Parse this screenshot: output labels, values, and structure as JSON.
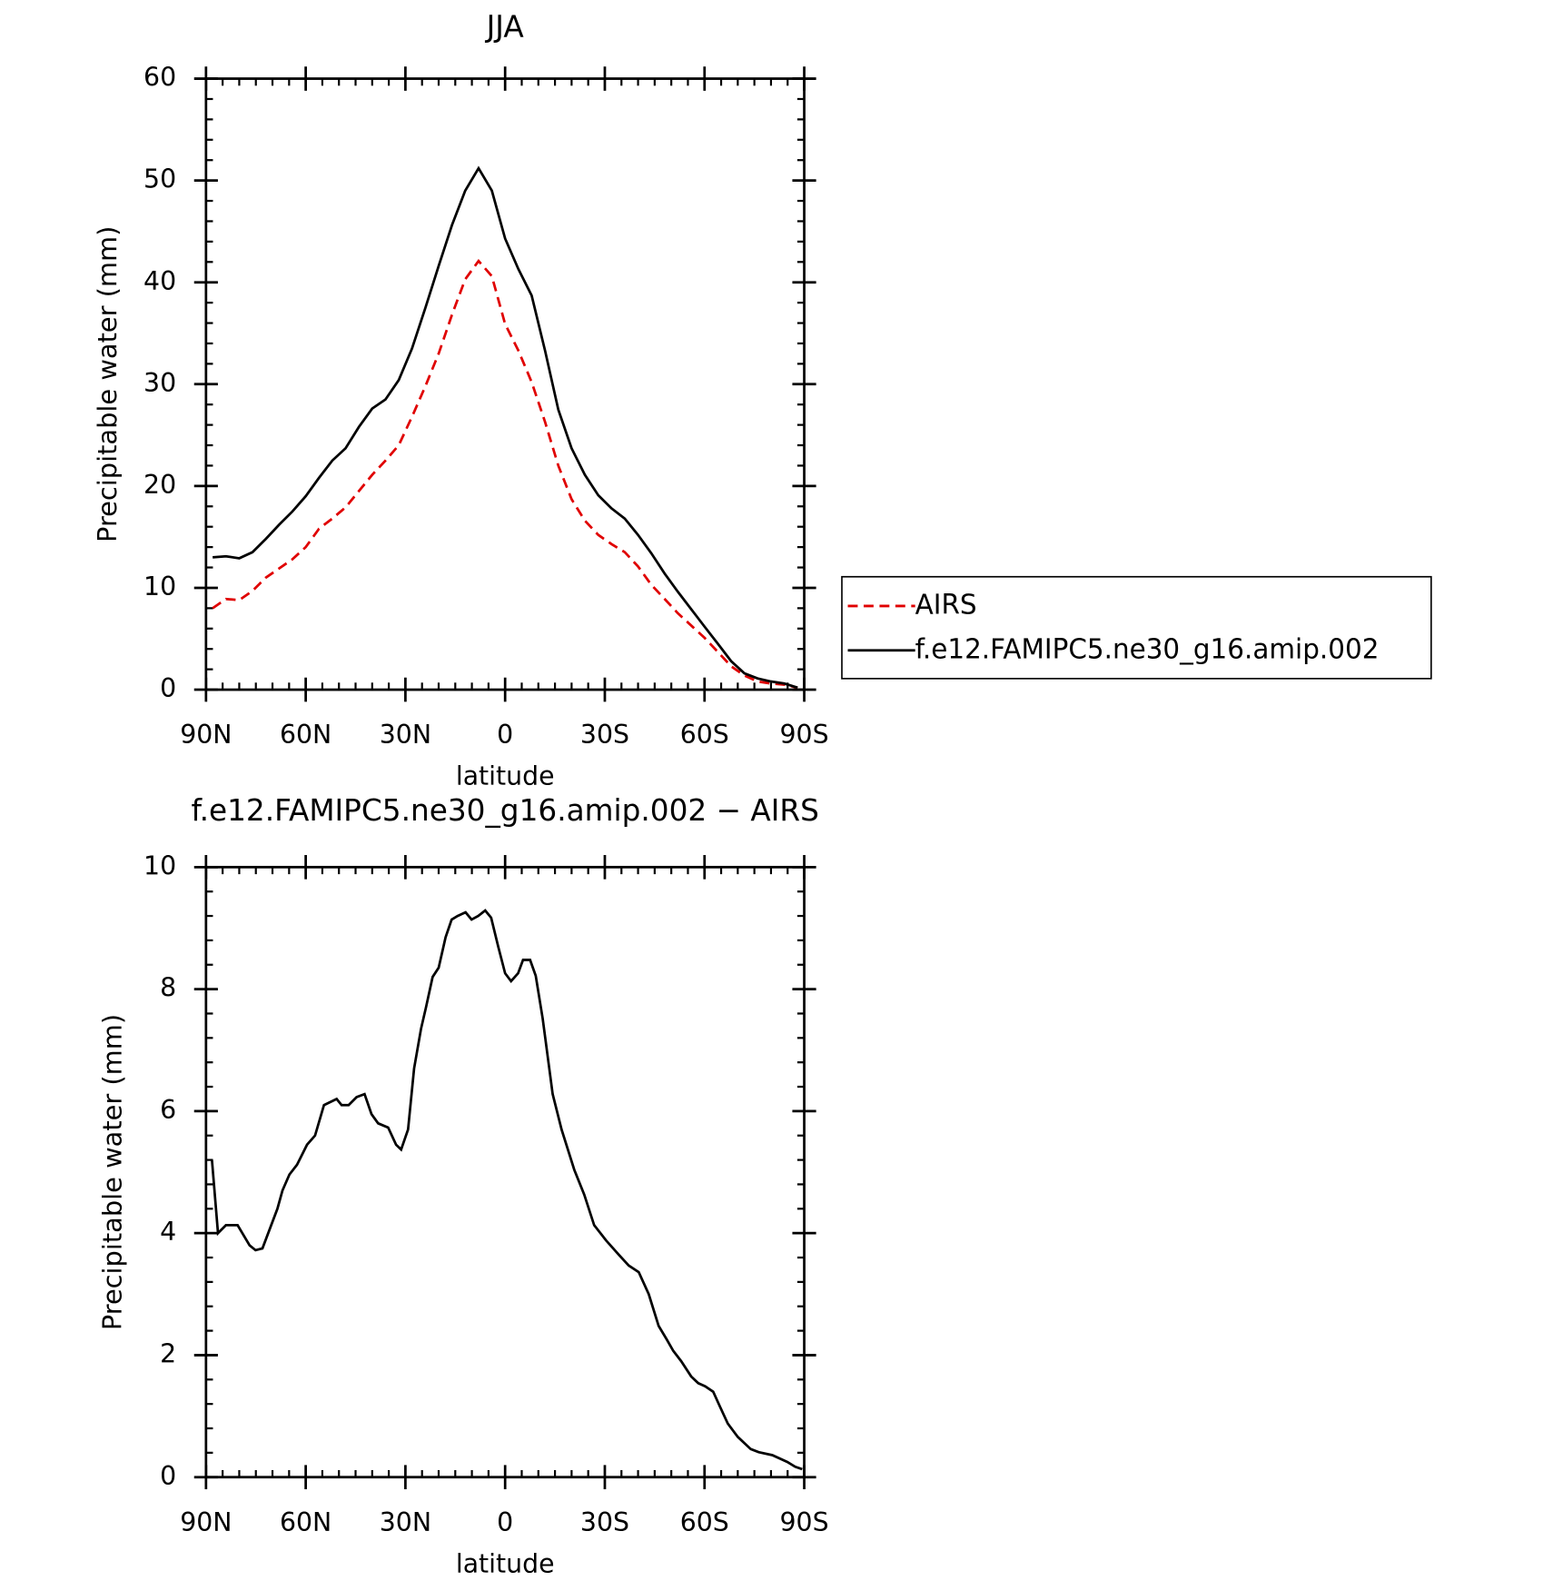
{
  "chart_data": [
    {
      "type": "line",
      "title": "JJA",
      "xlabel": "latitude",
      "ylabel": "Precipitable water (mm)",
      "x": [
        88,
        84,
        80,
        76,
        72,
        68,
        64,
        60,
        56,
        52,
        48,
        44,
        40,
        36,
        32,
        28,
        24,
        20,
        16,
        12,
        8,
        4,
        0,
        -4,
        -8,
        -12,
        -16,
        -20,
        -24,
        -28,
        -32,
        -36,
        -40,
        -44,
        -48,
        -52,
        -56,
        -60,
        -64,
        -68,
        -72,
        -76,
        -80,
        -84,
        -88
      ],
      "series": [
        {
          "name": "AIRS",
          "color": "#e00000",
          "dash": "dashed",
          "values": [
            8,
            8.9,
            8.8,
            9.7,
            11,
            11.9,
            12.8,
            14,
            15.8,
            16.8,
            17.9,
            19.5,
            21.1,
            22.5,
            24,
            26.8,
            29.8,
            33,
            36.8,
            40.3,
            42.1,
            40.6,
            35.9,
            33.3,
            30.2,
            26.3,
            22,
            18.7,
            16.6,
            15.2,
            14.3,
            13.5,
            12.1,
            10.3,
            8.9,
            7.5,
            6.3,
            5.1,
            3.7,
            2.3,
            1.4,
            0.8,
            0.6,
            0.5,
            0.2
          ]
        },
        {
          "name": "f.e12.FAMIPC5.ne30_g16.amip.002",
          "color": "#000000",
          "dash": "solid",
          "values": [
            13,
            13.1,
            12.9,
            13.5,
            14.8,
            16.2,
            17.5,
            19,
            20.8,
            22.5,
            23.7,
            25.8,
            27.6,
            28.5,
            30.4,
            33.5,
            37.5,
            41.6,
            45.6,
            49,
            51.2,
            49,
            44.3,
            41.3,
            38.7,
            33.3,
            27.5,
            23.7,
            21.1,
            19.1,
            17.8,
            16.8,
            15.2,
            13.4,
            11.4,
            9.6,
            7.9,
            6.2,
            4.5,
            2.8,
            1.6,
            1.1,
            0.8,
            0.6,
            0.2
          ]
        }
      ],
      "xlim": [
        90,
        -90
      ],
      "xticks": [
        {
          "value": 90,
          "label": "90N"
        },
        {
          "value": 60,
          "label": "60N"
        },
        {
          "value": 30,
          "label": "30N"
        },
        0,
        {
          "value": -30,
          "label": "30S"
        },
        {
          "value": -60,
          "label": "60S"
        },
        {
          "value": -90,
          "label": "90S"
        }
      ],
      "ylim": [
        0,
        60
      ],
      "yticks": [
        0,
        10,
        20,
        30,
        40,
        50,
        60
      ],
      "legend": "outside-right"
    },
    {
      "type": "line",
      "title": "f.e12.FAMIPC5.ne30_g16.amip.002 − AIRS",
      "xlabel": "latitude",
      "ylabel": "Precipitable water (mm)",
      "x": [
        88.2,
        86.4,
        84,
        80.5,
        76.9,
        75.1,
        73,
        68.5,
        67,
        64.9,
        62.6,
        59.6,
        57.2,
        54.5,
        50.7,
        49.2,
        47.1,
        44.7,
        42.3,
        40.2,
        38.2,
        35.2,
        32.8,
        31.3,
        29.2,
        27.4,
        25.3,
        23.8,
        21.8,
        20,
        17.9,
        16.1,
        14.3,
        11.9,
        10.1,
        8.1,
        6,
        4.2,
        2.1,
        0,
        -1.8,
        -3.9,
        -5.4,
        -7.5,
        -9.2,
        -11.3,
        -14.3,
        -17,
        -20.8,
        -23.8,
        -26.8,
        -30.4,
        -34.3,
        -37.2,
        -40.2,
        -43.2,
        -46.2,
        -48.6,
        -50.6,
        -53,
        -56,
        -58.1,
        -60.2,
        -62.6,
        -64.6,
        -67,
        -70,
        -73.9,
        -76.3,
        -80.4,
        -84.9,
        -87.3,
        -89.4
      ],
      "series": [
        {
          "color": "#000000",
          "dash": "solid",
          "values": [
            5.2,
            4.0,
            4.13,
            4.13,
            3.8,
            3.72,
            3.75,
            4.4,
            4.7,
            4.96,
            5.12,
            5.45,
            5.6,
            6.1,
            6.2,
            6.1,
            6.1,
            6.23,
            6.28,
            5.95,
            5.8,
            5.73,
            5.45,
            5.37,
            5.7,
            6.7,
            7.35,
            7.7,
            8.2,
            8.35,
            8.85,
            9.14,
            9.2,
            9.26,
            9.14,
            9.2,
            9.29,
            9.17,
            8.7,
            8.26,
            8.13,
            8.26,
            8.48,
            8.48,
            8.22,
            7.52,
            6.28,
            5.7,
            5.04,
            4.63,
            4.13,
            3.88,
            3.64,
            3.47,
            3.36,
            3.0,
            2.48,
            2.26,
            2.07,
            1.9,
            1.65,
            1.54,
            1.49,
            1.4,
            1.16,
            0.88,
            0.66,
            0.46,
            0.41,
            0.36,
            0.25,
            0.17,
            0.13
          ]
        }
      ],
      "xlim": [
        90,
        -90
      ],
      "xticks": [
        {
          "value": 90,
          "label": "90N"
        },
        {
          "value": 60,
          "label": "60N"
        },
        {
          "value": 30,
          "label": "30N"
        },
        0,
        {
          "value": -30,
          "label": "30S"
        },
        {
          "value": -60,
          "label": "60S"
        },
        {
          "value": -90,
          "label": "90S"
        }
      ],
      "ylim": [
        0,
        10
      ],
      "yticks": [
        0,
        2,
        4,
        6,
        8,
        10
      ]
    }
  ]
}
